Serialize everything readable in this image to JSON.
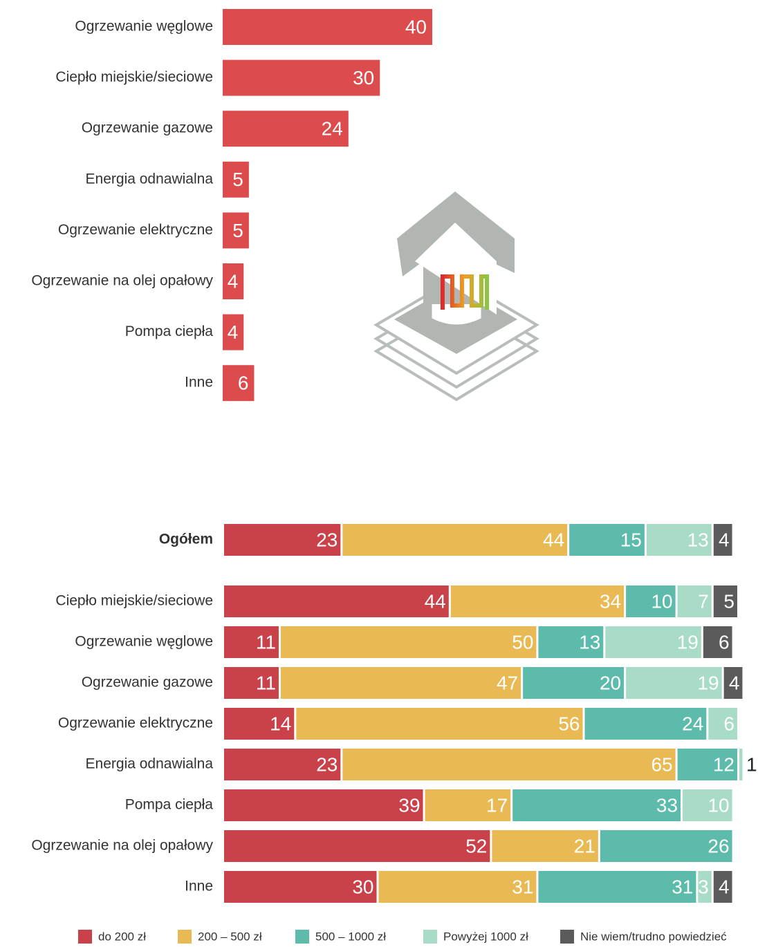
{
  "chart_data": [
    {
      "type": "bar",
      "orientation": "horizontal",
      "categories": [
        "Ogrzewanie węglowe",
        "Ciepło miejskie/sieciowe",
        "Ogrzewanie gazowe",
        "Energia odnawialna",
        "Ogrzewanie elektryczne",
        "Ogrzewanie na olej opałowy",
        "Pompa ciepła",
        "Inne"
      ],
      "values": [
        40,
        30,
        24,
        5,
        5,
        4,
        4,
        6
      ],
      "color": "#dc4c4c"
    },
    {
      "type": "stacked_bar",
      "orientation": "horizontal",
      "categories": [
        "Ogółem",
        "Ciepło miejskie/sieciowe",
        "Ogrzewanie węglowe",
        "Ogrzewanie gazowe",
        "Ogrzewanie elektryczne",
        "Energia odnawialna",
        "Pompa ciepła",
        "Ogrzewanie na olej opałowy",
        "Inne"
      ],
      "series": [
        {
          "name": "do 200 zł",
          "color": "#c9424a",
          "values": [
            23,
            44,
            11,
            11,
            14,
            23,
            39,
            52,
            30
          ]
        },
        {
          "name": "200 – 500 zł",
          "color": "#e9ba53",
          "values": [
            44,
            34,
            50,
            47,
            56,
            65,
            17,
            21,
            31
          ]
        },
        {
          "name": "500 – 1000 zł",
          "color": "#5cbbab",
          "values": [
            15,
            10,
            13,
            20,
            24,
            12,
            33,
            26,
            31
          ]
        },
        {
          "name": "Powyżej 1000 zł",
          "color": "#a8dcc7",
          "values": [
            13,
            7,
            19,
            19,
            6,
            1,
            10,
            null,
            3
          ]
        },
        {
          "name": "Nie wiem/trudno powiedzieć",
          "color": "#5b5b5b",
          "values": [
            4,
            5,
            6,
            4,
            null,
            null,
            null,
            null,
            4
          ]
        }
      ],
      "legend": "bottom"
    }
  ]
}
